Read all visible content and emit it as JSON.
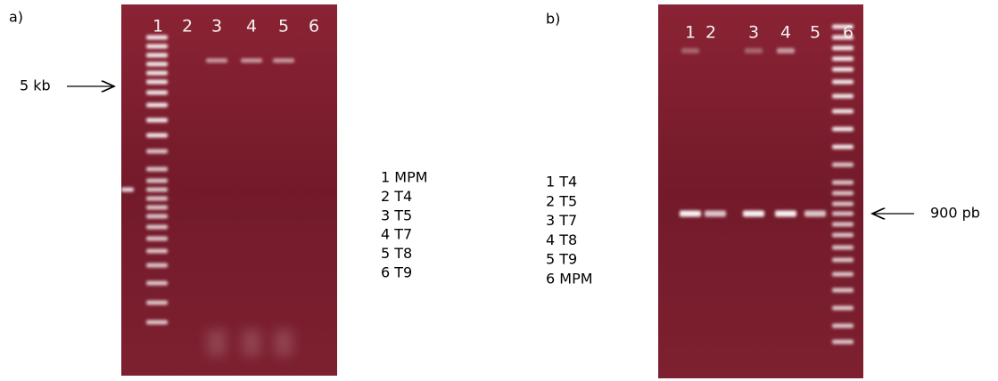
{
  "panels": [
    {
      "label": "a)",
      "lanes": [
        "1",
        "2",
        "3",
        "4",
        "5",
        "6"
      ],
      "marker": "5 kb",
      "legend": [
        "1 MPM",
        "2 T4",
        "3 T5",
        "4 T7",
        "5 T8",
        "6 T9"
      ]
    },
    {
      "label": "b)",
      "lanes": [
        "1",
        "2",
        "3",
        "4",
        "5",
        "6"
      ],
      "marker": "900 pb",
      "legend": [
        "1 T4",
        "2 T5",
        "3 T7",
        "4 T8",
        "5 T9",
        "6 MPM"
      ]
    }
  ]
}
